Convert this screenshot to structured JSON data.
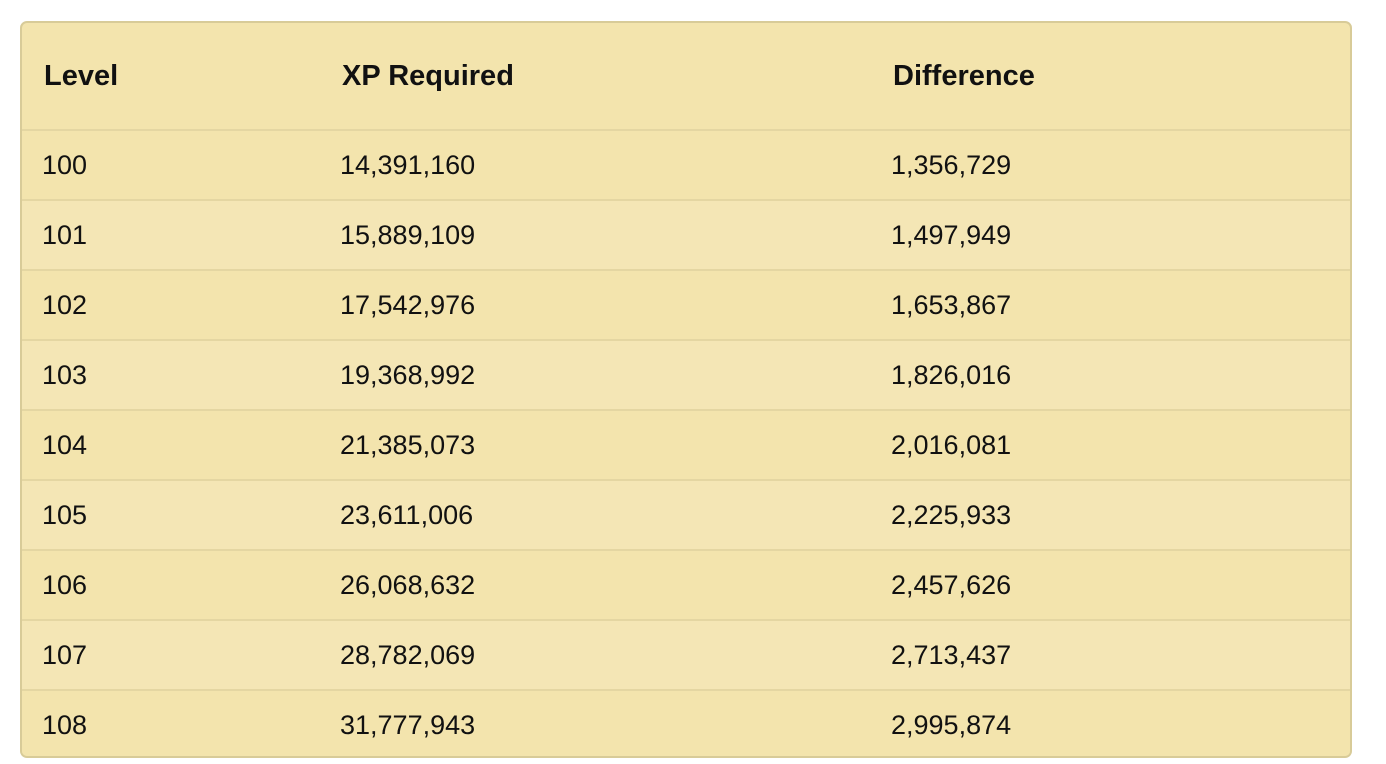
{
  "table": {
    "headers": {
      "level": "Level",
      "xp": "XP Required",
      "difference": "Difference"
    },
    "rows": [
      {
        "level": "100",
        "xp": "14,391,160",
        "difference": "1,356,729"
      },
      {
        "level": "101",
        "xp": "15,889,109",
        "difference": "1,497,949"
      },
      {
        "level": "102",
        "xp": "17,542,976",
        "difference": "1,653,867"
      },
      {
        "level": "103",
        "xp": "19,368,992",
        "difference": "1,826,016"
      },
      {
        "level": "104",
        "xp": "21,385,073",
        "difference": "2,016,081"
      },
      {
        "level": "105",
        "xp": "23,611,006",
        "difference": "2,225,933"
      },
      {
        "level": "106",
        "xp": "26,068,632",
        "difference": "2,457,626"
      },
      {
        "level": "107",
        "xp": "28,782,069",
        "difference": "2,713,437"
      },
      {
        "level": "108",
        "xp": "31,777,943",
        "difference": "2,995,874"
      }
    ]
  },
  "colors": {
    "background": "#f3e4ad",
    "border": "#d8cb98",
    "row_divider": "#e4d6a2"
  }
}
